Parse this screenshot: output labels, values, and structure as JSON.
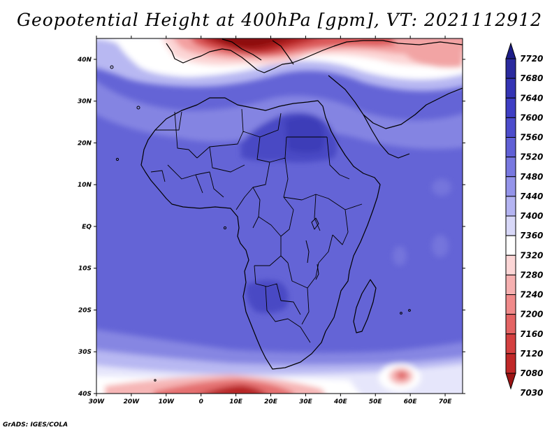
{
  "title": "Geopotential Height at 400hPa [gpm], VT: 2021112912",
  "credit": "GrADS: IGES/COLA",
  "map": {
    "lon_range": [
      -30,
      75
    ],
    "lat_range": [
      -40,
      45
    ],
    "lon_ticks": [
      "30W",
      "20W",
      "10W",
      "0",
      "10E",
      "20E",
      "30E",
      "40E",
      "50E",
      "60E",
      "70E"
    ],
    "lat_ticks": [
      "40N",
      "30N",
      "20N",
      "10N",
      "EQ",
      "10S",
      "20S",
      "30S",
      "40S"
    ]
  },
  "colorbar": {
    "labels": [
      "7720",
      "7680",
      "7640",
      "7600",
      "7560",
      "7520",
      "7480",
      "7440",
      "7400",
      "7360",
      "7320",
      "7280",
      "7240",
      "7200",
      "7160",
      "7120",
      "7080",
      "7030"
    ],
    "colors": [
      "#1d1d88",
      "#2a2a9e",
      "#3434b4",
      "#3e3ec4",
      "#4c4ccc",
      "#6060d6",
      "#7878e0",
      "#9494ea",
      "#b4b4f2",
      "#d8d8f8",
      "#ffffff",
      "#fcd6d6",
      "#f6b0b0",
      "#f08a8a",
      "#e46464",
      "#d44040",
      "#c02828",
      "#9c1414"
    ]
  }
}
